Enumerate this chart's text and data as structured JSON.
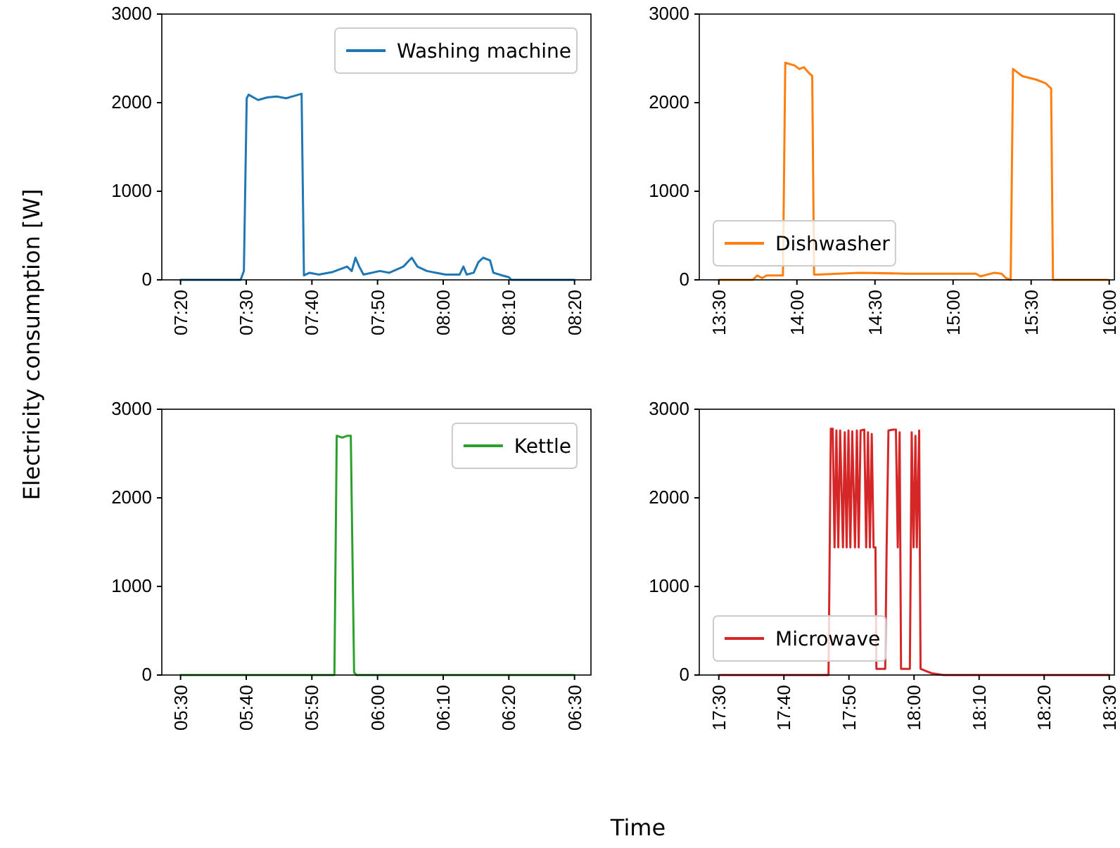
{
  "chart_data": [
    {
      "type": "line",
      "ylabel": "Electricity consumption [W]",
      "legend": "top right",
      "xlim": [
        7.2857,
        8.375
      ],
      "ylim": [
        0,
        3000
      ],
      "yticks": [
        0,
        1000,
        2000,
        3000
      ],
      "xticks": [
        {
          "value": 7.3333,
          "label": "07:20"
        },
        {
          "value": 7.5,
          "label": "07:30"
        },
        {
          "value": 7.6667,
          "label": "07:40"
        },
        {
          "value": 7.8333,
          "label": "07:50"
        },
        {
          "value": 8.0,
          "label": "08:00"
        },
        {
          "value": 8.1667,
          "label": "08:10"
        },
        {
          "value": 8.3333,
          "label": "08:20"
        }
      ],
      "series": [
        {
          "name": "Washing machine",
          "color": "#1f77b4",
          "x": [
            7.3333,
            7.4857,
            7.494,
            7.5012,
            7.506,
            7.53,
            7.5535,
            7.5773,
            7.6012,
            7.625,
            7.6405,
            7.6465,
            7.6607,
            7.6845,
            7.7202,
            7.756,
            7.7678,
            7.7773,
            7.7868,
            7.7977,
            7.8393,
            7.8632,
            7.8988,
            7.9202,
            7.9345,
            7.9583,
            7.9822,
            8.006,
            8.0417,
            8.0512,
            8.0595,
            8.0773,
            8.0893,
            8.1012,
            8.119,
            8.1273,
            8.15,
            8.1667,
            8.1727,
            8.3333
          ],
          "values": [
            0,
            0,
            100,
            2050,
            2090,
            2030,
            2060,
            2070,
            2050,
            2080,
            2100,
            50,
            80,
            60,
            90,
            150,
            100,
            250,
            150,
            60,
            100,
            80,
            150,
            250,
            150,
            100,
            80,
            60,
            60,
            150,
            60,
            80,
            200,
            250,
            220,
            80,
            50,
            30,
            0,
            0
          ]
        }
      ]
    },
    {
      "type": "line",
      "legend": "lower left",
      "xlim": [
        13.375,
        16.033
      ],
      "ylim": [
        0,
        3000
      ],
      "yticks": [
        0,
        1000,
        2000,
        3000
      ],
      "xticks": [
        {
          "value": 13.5,
          "label": "13:30"
        },
        {
          "value": 14.0,
          "label": "14:00"
        },
        {
          "value": 14.5,
          "label": "14:30"
        },
        {
          "value": 15.0,
          "label": "15:00"
        },
        {
          "value": 15.5,
          "label": "15:30"
        },
        {
          "value": 16.0,
          "label": "16:00"
        }
      ],
      "series": [
        {
          "name": "Dishwasher",
          "color": "#ff7f0e",
          "x": [
            13.5,
            13.7173,
            13.747,
            13.7768,
            13.8065,
            13.9107,
            13.9256,
            13.9851,
            14.0149,
            14.0446,
            14.0744,
            14.0982,
            14.1101,
            14.1339,
            14.4018,
            14.6994,
            14.997,
            15.1458,
            15.1756,
            15.2649,
            15.3095,
            15.3393,
            15.369,
            15.3839,
            15.4435,
            15.5327,
            15.5923,
            15.628,
            15.6399,
            15.994
          ],
          "values": [
            0,
            0,
            50,
            20,
            50,
            50,
            2450,
            2420,
            2380,
            2400,
            2340,
            2300,
            60,
            60,
            80,
            70,
            70,
            70,
            40,
            80,
            70,
            20,
            0,
            2380,
            2300,
            2260,
            2220,
            2160,
            0,
            0
          ]
        }
      ]
    },
    {
      "type": "line",
      "xlabel": "Time",
      "legend": "top right",
      "xlim": [
        5.4524,
        6.5417
      ],
      "ylim": [
        0,
        3000
      ],
      "yticks": [
        0,
        1000,
        2000,
        3000
      ],
      "xticks": [
        {
          "value": 5.5,
          "label": "05:30"
        },
        {
          "value": 5.6667,
          "label": "05:40"
        },
        {
          "value": 5.8333,
          "label": "05:50"
        },
        {
          "value": 6.0,
          "label": "06:00"
        },
        {
          "value": 6.1667,
          "label": "06:10"
        },
        {
          "value": 6.3333,
          "label": "06:20"
        },
        {
          "value": 6.5,
          "label": "06:30"
        }
      ],
      "series": [
        {
          "name": "Kettle",
          "color": "#2ca02c",
          "x": [
            5.5,
            5.8905,
            5.8964,
            5.9107,
            5.9226,
            5.9321,
            5.9405,
            5.9464,
            6.5
          ],
          "values": [
            0,
            0,
            2700,
            2680,
            2700,
            2700,
            30,
            0,
            0
          ]
        }
      ]
    },
    {
      "type": "line",
      "legend": "lower left",
      "xlim": [
        17.45,
        18.5131
      ],
      "ylim": [
        0,
        3000
      ],
      "yticks": [
        0,
        1000,
        2000,
        3000
      ],
      "xticks": [
        {
          "value": 17.5,
          "label": "17:30"
        },
        {
          "value": 17.6667,
          "label": "17:40"
        },
        {
          "value": 17.8333,
          "label": "17:50"
        },
        {
          "value": 18.0,
          "label": "18:00"
        },
        {
          "value": 18.1667,
          "label": "18:10"
        },
        {
          "value": 18.3333,
          "label": "18:20"
        },
        {
          "value": 18.5,
          "label": "18:30"
        }
      ],
      "series": [
        {
          "name": "Microwave",
          "color": "#d62728",
          "x": [
            17.5,
            17.781,
            17.7869,
            17.7917,
            17.7964,
            17.8012,
            17.806,
            17.8107,
            17.8179,
            17.8226,
            17.8274,
            17.8321,
            17.8369,
            17.8417,
            17.8488,
            17.8536,
            17.8583,
            17.8631,
            17.8726,
            17.8774,
            17.8821,
            17.8869,
            17.8917,
            17.8964,
            17.9012,
            17.9036,
            17.9262,
            17.9298,
            17.9345,
            17.9464,
            17.9536,
            17.9583,
            17.9631,
            17.9667,
            17.9893,
            17.994,
            17.9988,
            18.0036,
            18.0071,
            18.0131,
            18.0167,
            18.0274,
            18.0452,
            18.075,
            18.5
          ],
          "values": [
            0,
            0,
            2780,
            2780,
            1440,
            2760,
            1440,
            2760,
            1440,
            2740,
            1440,
            2760,
            1440,
            2750,
            1440,
            2760,
            1440,
            2760,
            2770,
            1440,
            2740,
            1440,
            2720,
            1440,
            1440,
            70,
            70,
            1440,
            2760,
            2770,
            2770,
            1440,
            2740,
            70,
            70,
            2740,
            1440,
            2700,
            1440,
            2760,
            70,
            50,
            20,
            0,
            0
          ]
        }
      ]
    }
  ]
}
